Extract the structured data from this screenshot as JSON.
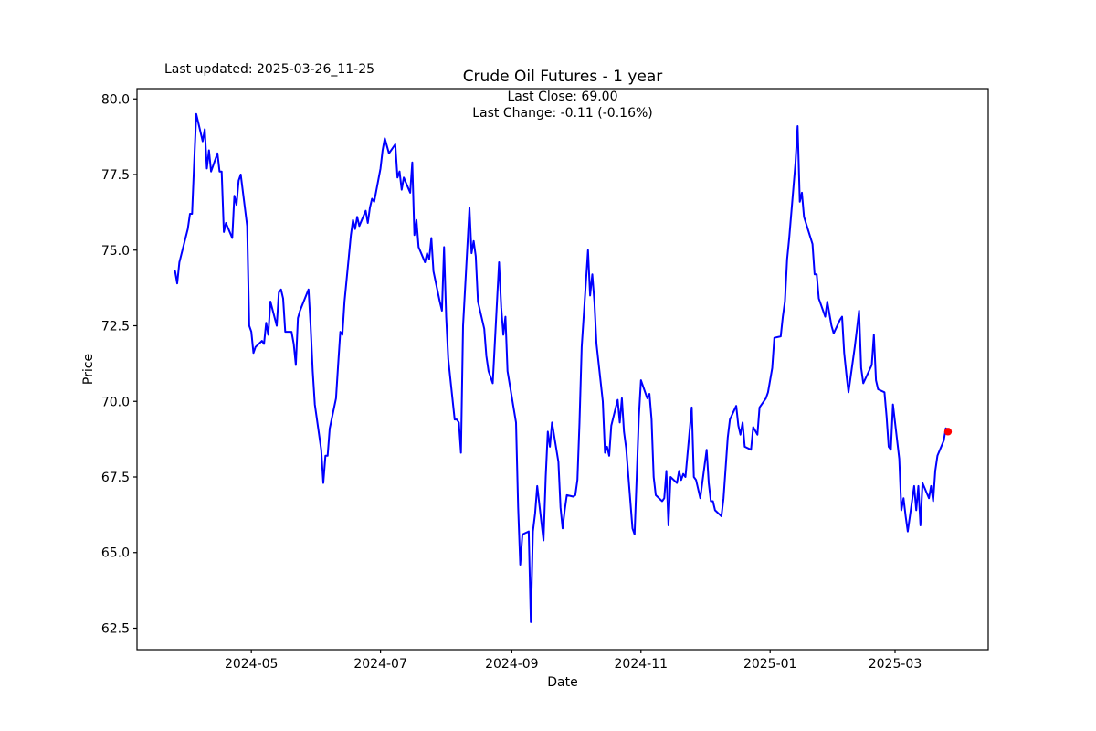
{
  "figure": {
    "last_updated": "Last updated: 2025-03-26_11-25",
    "title": "Crude Oil Futures - 1 year",
    "annotation_line1": "Last Close: 69.00",
    "annotation_line2": "Last Change: -0.11 (-0.16%)"
  },
  "chart_data": {
    "type": "line",
    "title": "Crude Oil Futures - 1 year",
    "xlabel": "Date",
    "ylabel": "Price",
    "grid": false,
    "legend_position": "none",
    "line_color": "#0000ff",
    "last_point_marker_color": "#ff0000",
    "axis_color": "#000000",
    "ylim": [
      61.79,
      80.34
    ],
    "xlim_dates": [
      "2024-03-08",
      "2025-04-14"
    ],
    "y_ticks": [
      62.5,
      65.0,
      67.5,
      70.0,
      72.5,
      75.0,
      77.5,
      80.0
    ],
    "y_tick_labels": [
      "62.5",
      "65.0",
      "67.5",
      "70.0",
      "72.5",
      "75.0",
      "77.5",
      "80.0"
    ],
    "x_tick_dates": [
      "2024-05-01",
      "2024-07-01",
      "2024-09-01",
      "2024-11-01",
      "2025-01-01",
      "2025-03-01"
    ],
    "x_tick_labels": [
      "2024-05",
      "2024-07",
      "2024-09",
      "2024-11",
      "2025-01",
      "2025-03"
    ],
    "last_close": 69.0,
    "last_change": -0.11,
    "last_change_pct": "-0.16%",
    "series": [
      {
        "name": "Price",
        "points": [
          [
            "2024-03-26",
            74.3
          ],
          [
            "2024-03-27",
            73.9
          ],
          [
            "2024-03-28",
            74.6
          ],
          [
            "2024-04-01",
            75.7
          ],
          [
            "2024-04-02",
            76.2
          ],
          [
            "2024-04-03",
            76.2
          ],
          [
            "2024-04-04",
            77.9
          ],
          [
            "2024-04-05",
            79.5
          ],
          [
            "2024-04-08",
            78.6
          ],
          [
            "2024-04-09",
            79.0
          ],
          [
            "2024-04-10",
            77.7
          ],
          [
            "2024-04-11",
            78.3
          ],
          [
            "2024-04-12",
            77.6
          ],
          [
            "2024-04-15",
            78.2
          ],
          [
            "2024-04-16",
            77.6
          ],
          [
            "2024-04-17",
            77.6
          ],
          [
            "2024-04-18",
            75.6
          ],
          [
            "2024-04-19",
            75.9
          ],
          [
            "2024-04-22",
            75.4
          ],
          [
            "2024-04-23",
            76.8
          ],
          [
            "2024-04-24",
            76.5
          ],
          [
            "2024-04-25",
            77.3
          ],
          [
            "2024-04-26",
            77.5
          ],
          [
            "2024-04-29",
            75.8
          ],
          [
            "2024-04-30",
            72.5
          ],
          [
            "2024-05-01",
            72.3
          ],
          [
            "2024-05-02",
            71.6
          ],
          [
            "2024-05-03",
            71.8
          ],
          [
            "2024-05-06",
            72.0
          ],
          [
            "2024-05-07",
            71.9
          ],
          [
            "2024-05-08",
            72.6
          ],
          [
            "2024-05-09",
            72.2
          ],
          [
            "2024-05-10",
            73.3
          ],
          [
            "2024-05-13",
            72.5
          ],
          [
            "2024-05-14",
            73.6
          ],
          [
            "2024-05-15",
            73.7
          ],
          [
            "2024-05-16",
            73.4
          ],
          [
            "2024-05-17",
            72.3
          ],
          [
            "2024-05-20",
            72.3
          ],
          [
            "2024-05-21",
            71.9
          ],
          [
            "2024-05-22",
            71.2
          ],
          [
            "2024-05-23",
            72.75
          ],
          [
            "2024-05-24",
            73.0
          ],
          [
            "2024-05-28",
            73.7
          ],
          [
            "2024-05-29",
            72.5
          ],
          [
            "2024-05-30",
            71.0
          ],
          [
            "2024-05-31",
            69.9
          ],
          [
            "2024-06-03",
            68.4
          ],
          [
            "2024-06-04",
            67.3
          ],
          [
            "2024-06-05",
            68.2
          ],
          [
            "2024-06-06",
            68.2
          ],
          [
            "2024-06-07",
            69.1
          ],
          [
            "2024-06-10",
            70.1
          ],
          [
            "2024-06-11",
            71.2
          ],
          [
            "2024-06-12",
            72.3
          ],
          [
            "2024-06-13",
            72.2
          ],
          [
            "2024-06-14",
            73.3
          ],
          [
            "2024-06-17",
            75.5
          ],
          [
            "2024-06-18",
            76.0
          ],
          [
            "2024-06-19",
            75.7
          ],
          [
            "2024-06-20",
            76.1
          ],
          [
            "2024-06-21",
            75.8
          ],
          [
            "2024-06-24",
            76.3
          ],
          [
            "2024-06-25",
            75.9
          ],
          [
            "2024-06-26",
            76.4
          ],
          [
            "2024-06-27",
            76.7
          ],
          [
            "2024-06-28",
            76.6
          ],
          [
            "2024-07-01",
            77.7
          ],
          [
            "2024-07-02",
            78.3
          ],
          [
            "2024-07-03",
            78.7
          ],
          [
            "2024-07-05",
            78.2
          ],
          [
            "2024-07-08",
            78.5
          ],
          [
            "2024-07-09",
            77.4
          ],
          [
            "2024-07-10",
            77.6
          ],
          [
            "2024-07-11",
            77.0
          ],
          [
            "2024-07-12",
            77.4
          ],
          [
            "2024-07-15",
            76.9
          ],
          [
            "2024-07-16",
            77.9
          ],
          [
            "2024-07-17",
            75.5
          ],
          [
            "2024-07-18",
            76.0
          ],
          [
            "2024-07-19",
            75.1
          ],
          [
            "2024-07-22",
            74.6
          ],
          [
            "2024-07-23",
            74.9
          ],
          [
            "2024-07-24",
            74.7
          ],
          [
            "2024-07-25",
            75.4
          ],
          [
            "2024-07-26",
            74.3
          ],
          [
            "2024-07-29",
            73.3
          ],
          [
            "2024-07-30",
            73.0
          ],
          [
            "2024-07-31",
            75.1
          ],
          [
            "2024-08-01",
            72.8
          ],
          [
            "2024-08-02",
            71.4
          ],
          [
            "2024-08-05",
            69.4
          ],
          [
            "2024-08-06",
            69.4
          ],
          [
            "2024-08-07",
            69.3
          ],
          [
            "2024-08-08",
            68.3
          ],
          [
            "2024-08-09",
            72.5
          ],
          [
            "2024-08-12",
            76.4
          ],
          [
            "2024-08-13",
            74.9
          ],
          [
            "2024-08-14",
            75.3
          ],
          [
            "2024-08-15",
            74.8
          ],
          [
            "2024-08-16",
            73.3
          ],
          [
            "2024-08-19",
            72.4
          ],
          [
            "2024-08-20",
            71.5
          ],
          [
            "2024-08-21",
            71.0
          ],
          [
            "2024-08-22",
            70.8
          ],
          [
            "2024-08-23",
            70.6
          ],
          [
            "2024-08-26",
            74.6
          ],
          [
            "2024-08-27",
            73.1
          ],
          [
            "2024-08-28",
            72.2
          ],
          [
            "2024-08-29",
            72.8
          ],
          [
            "2024-08-30",
            71.0
          ],
          [
            "2024-09-03",
            69.3
          ],
          [
            "2024-09-04",
            66.5
          ],
          [
            "2024-09-05",
            64.6
          ],
          [
            "2024-09-06",
            65.6
          ],
          [
            "2024-09-09",
            65.7
          ],
          [
            "2024-09-10",
            62.7
          ],
          [
            "2024-09-11",
            65.7
          ],
          [
            "2024-09-12",
            66.3
          ],
          [
            "2024-09-13",
            67.2
          ],
          [
            "2024-09-16",
            65.4
          ],
          [
            "2024-09-17",
            67.5
          ],
          [
            "2024-09-18",
            69.0
          ],
          [
            "2024-09-19",
            68.5
          ],
          [
            "2024-09-20",
            69.3
          ],
          [
            "2024-09-23",
            68.0
          ],
          [
            "2024-09-24",
            66.5
          ],
          [
            "2024-09-25",
            65.8
          ],
          [
            "2024-09-26",
            66.4
          ],
          [
            "2024-09-27",
            66.9
          ],
          [
            "2024-09-30",
            66.85
          ],
          [
            "2024-10-01",
            66.9
          ],
          [
            "2024-10-02",
            67.4
          ],
          [
            "2024-10-03",
            69.3
          ],
          [
            "2024-10-04",
            71.8
          ],
          [
            "2024-10-07",
            75.0
          ],
          [
            "2024-10-08",
            73.5
          ],
          [
            "2024-10-09",
            74.2
          ],
          [
            "2024-10-10",
            73.3
          ],
          [
            "2024-10-11",
            71.9
          ],
          [
            "2024-10-14",
            70.0
          ],
          [
            "2024-10-15",
            68.3
          ],
          [
            "2024-10-16",
            68.5
          ],
          [
            "2024-10-17",
            68.2
          ],
          [
            "2024-10-18",
            69.2
          ],
          [
            "2024-10-21",
            70.05
          ],
          [
            "2024-10-22",
            69.3
          ],
          [
            "2024-10-23",
            70.1
          ],
          [
            "2024-10-24",
            69.0
          ],
          [
            "2024-10-25",
            68.45
          ],
          [
            "2024-10-28",
            65.8
          ],
          [
            "2024-10-29",
            65.6
          ],
          [
            "2024-10-30",
            67.5
          ],
          [
            "2024-10-31",
            69.5
          ],
          [
            "2024-11-01",
            70.7
          ],
          [
            "2024-11-04",
            70.1
          ],
          [
            "2024-11-05",
            70.25
          ],
          [
            "2024-11-06",
            69.4
          ],
          [
            "2024-11-07",
            67.5
          ],
          [
            "2024-11-08",
            66.9
          ],
          [
            "2024-11-11",
            66.7
          ],
          [
            "2024-11-12",
            66.8
          ],
          [
            "2024-11-13",
            67.7
          ],
          [
            "2024-11-14",
            65.9
          ],
          [
            "2024-11-15",
            67.5
          ],
          [
            "2024-11-18",
            67.3
          ],
          [
            "2024-11-19",
            67.7
          ],
          [
            "2024-11-20",
            67.4
          ],
          [
            "2024-11-21",
            67.6
          ],
          [
            "2024-11-22",
            67.5
          ],
          [
            "2024-11-25",
            69.8
          ],
          [
            "2024-11-26",
            67.5
          ],
          [
            "2024-11-27",
            67.4
          ],
          [
            "2024-11-29",
            66.8
          ],
          [
            "2024-12-02",
            68.4
          ],
          [
            "2024-12-03",
            67.3
          ],
          [
            "2024-12-04",
            66.7
          ],
          [
            "2024-12-05",
            66.7
          ],
          [
            "2024-12-06",
            66.4
          ],
          [
            "2024-12-09",
            66.2
          ],
          [
            "2024-12-10",
            66.8
          ],
          [
            "2024-12-11",
            67.8
          ],
          [
            "2024-12-12",
            68.8
          ],
          [
            "2024-12-13",
            69.4
          ],
          [
            "2024-12-16",
            69.85
          ],
          [
            "2024-12-17",
            69.2
          ],
          [
            "2024-12-18",
            68.9
          ],
          [
            "2024-12-19",
            69.3
          ],
          [
            "2024-12-20",
            68.5
          ],
          [
            "2024-12-23",
            68.4
          ],
          [
            "2024-12-24",
            69.15
          ],
          [
            "2024-12-26",
            68.9
          ],
          [
            "2024-12-27",
            69.8
          ],
          [
            "2024-12-30",
            70.1
          ],
          [
            "2024-12-31",
            70.3
          ],
          [
            "2025-01-02",
            71.1
          ],
          [
            "2025-01-03",
            72.1
          ],
          [
            "2025-01-06",
            72.15
          ],
          [
            "2025-01-07",
            72.8
          ],
          [
            "2025-01-08",
            73.3
          ],
          [
            "2025-01-09",
            74.7
          ],
          [
            "2025-01-10",
            75.4
          ],
          [
            "2025-01-13",
            77.9
          ],
          [
            "2025-01-14",
            79.1
          ],
          [
            "2025-01-15",
            76.6
          ],
          [
            "2025-01-16",
            76.9
          ],
          [
            "2025-01-17",
            76.1
          ],
          [
            "2025-01-21",
            75.2
          ],
          [
            "2025-01-22",
            74.2
          ],
          [
            "2025-01-23",
            74.2
          ],
          [
            "2025-01-24",
            73.4
          ],
          [
            "2025-01-27",
            72.8
          ],
          [
            "2025-01-28",
            73.3
          ],
          [
            "2025-01-29",
            72.9
          ],
          [
            "2025-01-30",
            72.5
          ],
          [
            "2025-01-31",
            72.25
          ],
          [
            "2025-02-03",
            72.7
          ],
          [
            "2025-02-04",
            72.8
          ],
          [
            "2025-02-05",
            71.6
          ],
          [
            "2025-02-06",
            70.9
          ],
          [
            "2025-02-07",
            70.3
          ],
          [
            "2025-02-10",
            71.8
          ],
          [
            "2025-02-11",
            72.4
          ],
          [
            "2025-02-12",
            73.0
          ],
          [
            "2025-02-13",
            71.1
          ],
          [
            "2025-02-14",
            70.6
          ],
          [
            "2025-02-18",
            71.2
          ],
          [
            "2025-02-19",
            72.2
          ],
          [
            "2025-02-20",
            70.7
          ],
          [
            "2025-02-21",
            70.4
          ],
          [
            "2025-02-24",
            70.3
          ],
          [
            "2025-02-25",
            69.5
          ],
          [
            "2025-02-26",
            68.5
          ],
          [
            "2025-02-27",
            68.4
          ],
          [
            "2025-02-28",
            69.9
          ],
          [
            "2025-03-03",
            68.1
          ],
          [
            "2025-03-04",
            66.4
          ],
          [
            "2025-03-05",
            66.8
          ],
          [
            "2025-03-06",
            66.2
          ],
          [
            "2025-03-07",
            65.7
          ],
          [
            "2025-03-10",
            67.2
          ],
          [
            "2025-03-11",
            66.4
          ],
          [
            "2025-03-12",
            67.2
          ],
          [
            "2025-03-13",
            65.9
          ],
          [
            "2025-03-14",
            67.3
          ],
          [
            "2025-03-17",
            66.8
          ],
          [
            "2025-03-18",
            67.2
          ],
          [
            "2025-03-19",
            66.7
          ],
          [
            "2025-03-20",
            67.7
          ],
          [
            "2025-03-21",
            68.2
          ],
          [
            "2025-03-24",
            68.7
          ],
          [
            "2025-03-25",
            69.11
          ],
          [
            "2025-03-26",
            69.0
          ]
        ]
      }
    ]
  }
}
